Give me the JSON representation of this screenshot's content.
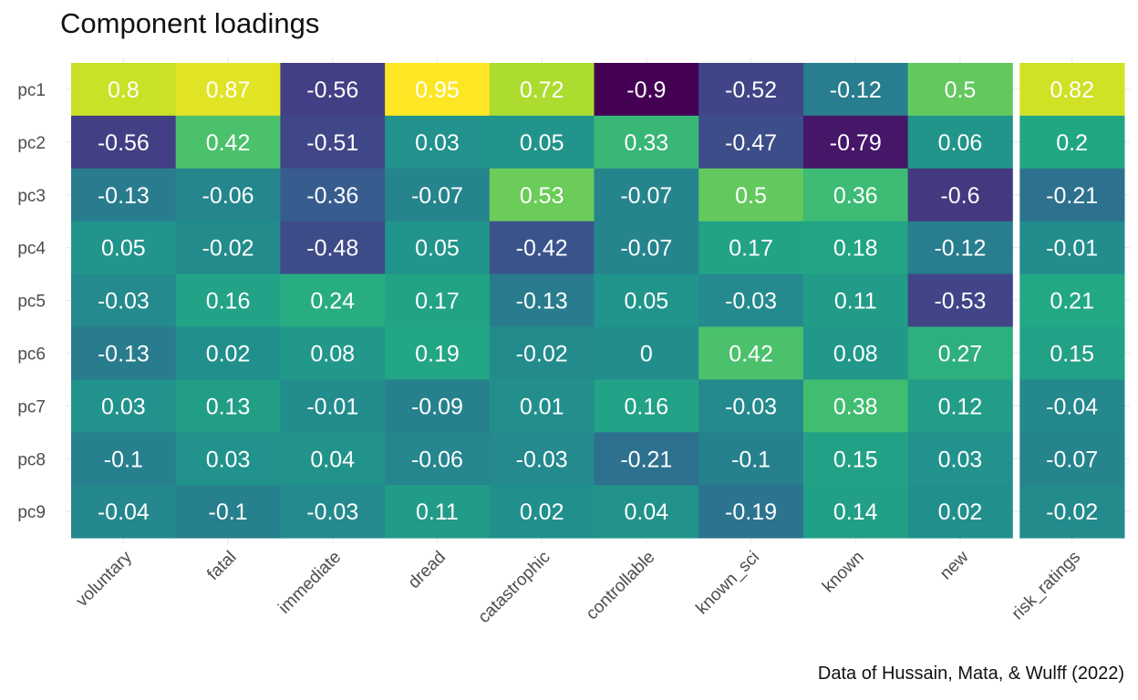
{
  "chart_data": {
    "type": "heatmap",
    "title": "Component loadings",
    "caption": "Data of Hussain, Mata, & Wulff (2022)",
    "rows": [
      "pc1",
      "pc2",
      "pc3",
      "pc4",
      "pc5",
      "pc6",
      "pc7",
      "pc8",
      "pc9"
    ],
    "columns": [
      "voluntary",
      "fatal",
      "immediate",
      "dread",
      "catastrophic",
      "controllable",
      "known_sci",
      "known",
      "new",
      "risk_ratings"
    ],
    "facet_split_after_column": "new",
    "values": [
      [
        0.8,
        0.87,
        -0.56,
        0.95,
        0.72,
        -0.9,
        -0.52,
        -0.12,
        0.5,
        0.82
      ],
      [
        -0.56,
        0.42,
        -0.51,
        0.03,
        0.05,
        0.33,
        -0.47,
        -0.79,
        0.06,
        0.2
      ],
      [
        -0.13,
        -0.06,
        -0.36,
        -0.07,
        0.53,
        -0.07,
        0.5,
        0.36,
        -0.6,
        -0.21
      ],
      [
        0.05,
        -0.02,
        -0.48,
        0.05,
        -0.42,
        -0.07,
        0.17,
        0.18,
        -0.12,
        -0.01
      ],
      [
        -0.03,
        0.16,
        0.24,
        0.17,
        -0.13,
        0.05,
        -0.03,
        0.11,
        -0.53,
        0.21
      ],
      [
        -0.13,
        0.02,
        0.08,
        0.19,
        -0.02,
        0,
        0.42,
        0.08,
        0.27,
        0.15
      ],
      [
        0.03,
        0.13,
        -0.01,
        -0.09,
        0.01,
        0.16,
        -0.03,
        0.38,
        0.12,
        -0.04
      ],
      [
        -0.1,
        0.03,
        0.04,
        -0.06,
        -0.03,
        -0.21,
        -0.1,
        0.15,
        0.03,
        -0.07
      ],
      [
        -0.04,
        -0.1,
        -0.03,
        0.11,
        0.02,
        0.04,
        -0.19,
        0.14,
        0.02,
        -0.02
      ]
    ],
    "color_scale": "viridis",
    "value_range": [
      -0.9,
      0.95
    ],
    "grid": true,
    "legend": "none"
  }
}
